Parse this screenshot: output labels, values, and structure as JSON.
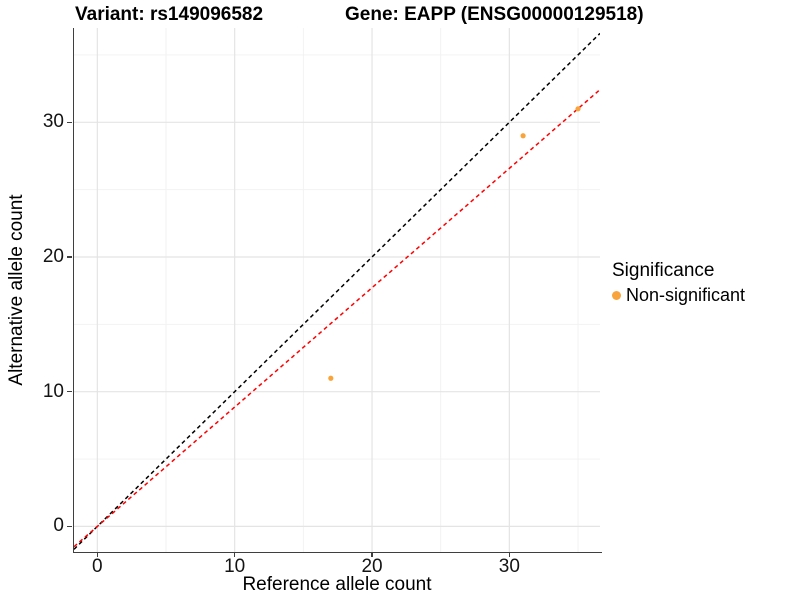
{
  "chart_data": {
    "type": "scatter",
    "title_left": "Variant: rs149096582",
    "title_right": "Gene: EAPP (ENSG00000129518)",
    "xlabel": "Reference allele count",
    "ylabel": "Alternative allele count",
    "xlim": [
      -1.7,
      36.6
    ],
    "ylim": [
      -1.9,
      37.0
    ],
    "x_ticks": [
      0,
      10,
      20,
      30
    ],
    "y_ticks": [
      0,
      10,
      20,
      30
    ],
    "x_minor_ticks": [
      5,
      15,
      25,
      35
    ],
    "y_minor_ticks": [
      5,
      15,
      25,
      35
    ],
    "grid": true,
    "series": [
      {
        "name": "Non-significant",
        "color": "#F9A43A",
        "points": [
          [
            17,
            11
          ],
          [
            31,
            29
          ],
          [
            35,
            31
          ]
        ]
      }
    ],
    "lines": [
      {
        "name": "identity",
        "slope": 1,
        "intercept": 0,
        "color": "#000000",
        "style": "dashed"
      },
      {
        "name": "fit",
        "slope": 0.886,
        "intercept": 0,
        "color": "#FF0000",
        "style": "dashed"
      }
    ],
    "legend": {
      "title": "Significance",
      "position": "right",
      "items": [
        {
          "label": "Non-significant",
          "color": "#F9A43A"
        }
      ]
    },
    "colors": {
      "major_grid": "#E4E4E4",
      "minor_grid": "#F1F1F1",
      "axis_line": "#3F3F3F"
    }
  }
}
